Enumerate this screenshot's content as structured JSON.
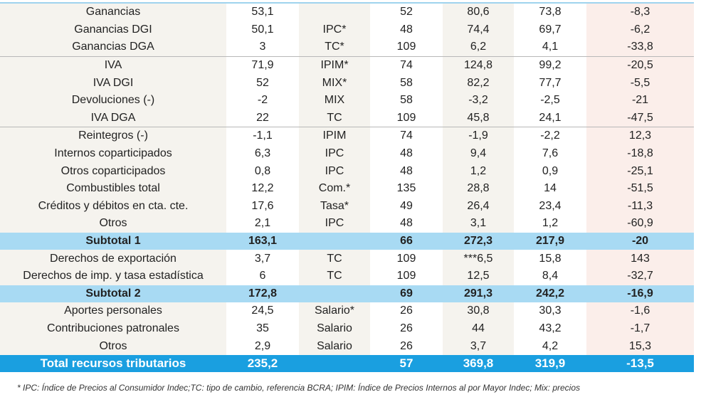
{
  "table": {
    "rows": [
      [
        "Ganancias",
        "53,1",
        null,
        "52",
        "80,6",
        "73,8",
        "-8,3"
      ],
      [
        "Ganancias DGI",
        "50,1",
        "IPC*",
        "48",
        "74,4",
        "69,7",
        "-6,2"
      ],
      [
        "Ganancias DGA",
        "3",
        "TC*",
        "109",
        "6,2",
        "4,1",
        "-33,8"
      ],
      [
        "IVA",
        "71,9",
        "IPIM*",
        "74",
        "124,8",
        "99,2",
        "-20,5"
      ],
      [
        "IVA DGI",
        "52",
        "MIX*",
        "58",
        "82,2",
        "77,7",
        "-5,5"
      ],
      [
        "Devoluciones (-)",
        "-2",
        "MIX",
        "58",
        "-3,2",
        "-2,5",
        "-21"
      ],
      [
        "IVA DGA",
        "22",
        "TC",
        "109",
        "45,8",
        "24,1",
        "-47,5"
      ],
      [
        "Reintegros (-)",
        "-1,1",
        "IPIM",
        "74",
        "-1,9",
        "-2,2",
        "12,3"
      ],
      [
        "Internos coparticipados",
        "6,3",
        "IPC",
        "48",
        "9,4",
        "7,6",
        "-18,8"
      ],
      [
        "Otros coparticipados",
        "0,8",
        "IPC",
        "48",
        "1,2",
        "0,9",
        "-25,1"
      ],
      [
        "Combustibles total",
        "12,2",
        "Com.*",
        "135",
        "28,8",
        "14",
        "-51,5"
      ],
      [
        "Créditos y débitos en cta. cte.",
        "17,6",
        "Tasa*",
        "49",
        "26,4",
        "23,4",
        "-11,3"
      ],
      [
        "Otros",
        "2,1",
        "IPC",
        "48",
        "3,1",
        "1,2",
        "-60,9"
      ],
      [
        "Subtotal 1",
        "163,1",
        null,
        "66",
        "272,3",
        "217,9",
        "-20"
      ],
      [
        "Derechos de exportación",
        "3,7",
        "TC",
        "109",
        "***6,5",
        "15,8",
        "143"
      ],
      [
        "Derechos de imp. y tasa estadística",
        "6",
        "TC",
        "109",
        "12,5",
        "8,4",
        "-32,7"
      ],
      [
        "Subtotal 2",
        "172,8",
        null,
        "69",
        "291,3",
        "242,2",
        "-16,9"
      ],
      [
        "Aportes personales",
        "24,5",
        "Salario*",
        "26",
        "30,8",
        "30,3",
        "-1,6"
      ],
      [
        "Contribuciones patronales",
        "35",
        "Salario",
        "26",
        "44",
        "43,2",
        "-1,7"
      ],
      [
        "Otros",
        "2,9",
        "Salario",
        "26",
        "3,7",
        "4,2",
        "15,3"
      ],
      [
        "Total recursos tributarios",
        "235,2",
        null,
        "57",
        "369,8",
        "319,9",
        "-13,5"
      ]
    ]
  },
  "footnote": "* IPC: Índice de Precios al Consumidor Indec;TC: tipo de cambio, referencia BCRA; IPIM: Índice de Precios Internos al por Mayor Indec; Mix: precios"
}
